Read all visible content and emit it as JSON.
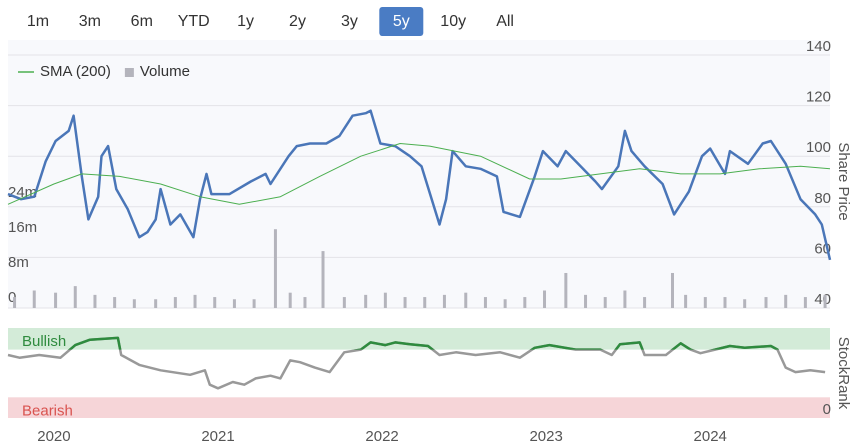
{
  "range_selector": {
    "options": [
      "1m",
      "3m",
      "6m",
      "YTD",
      "1y",
      "2y",
      "3y",
      "5y",
      "10y",
      "All"
    ],
    "selected": 7
  },
  "chart_data": [
    {
      "type": "line",
      "y_label": "Share Price",
      "xlim": [
        2019.72,
        2024.73
      ],
      "xticks": [
        2020,
        2021,
        2022,
        2023,
        2024
      ],
      "ylim": [
        40,
        140
      ],
      "yticks": [
        40,
        60,
        80,
        100,
        120,
        140
      ],
      "y2lim": [
        0,
        57800000
      ],
      "y2ticks": [
        0,
        {
          "value": 8000000,
          "label": "8m"
        },
        {
          "value": 16000000,
          "label": "16m"
        },
        {
          "value": 24000000,
          "label": "24m"
        }
      ],
      "grid": true,
      "legend": "top-left",
      "series": [
        {
          "color": "#4a76b8",
          "x": [
            2019.72,
            2019.8,
            2019.88,
            2019.95,
            2020.01,
            2020.09,
            2020.12,
            2020.17,
            2020.21,
            2020.27,
            2020.29,
            2020.33,
            2020.38,
            2020.45,
            2020.52,
            2020.57,
            2020.62,
            2020.65,
            2020.71,
            2020.77,
            2020.85,
            2020.89,
            2020.93,
            2020.96,
            2021.07,
            2021.2,
            2021.29,
            2021.32,
            2021.43,
            2021.48,
            2021.56,
            2021.66,
            2021.74,
            2021.82,
            2021.9,
            2021.93,
            2021.99,
            2022.08,
            2022.17,
            2022.24,
            2022.35,
            2022.39,
            2022.43,
            2022.51,
            2022.6,
            2022.7,
            2022.74,
            2022.84,
            2022.93,
            2022.98,
            2023.07,
            2023.12,
            2023.21,
            2023.3,
            2023.34,
            2023.44,
            2023.48,
            2023.52,
            2023.6,
            2023.71,
            2023.78,
            2023.87,
            2023.95,
            2024.0,
            2024.09,
            2024.12,
            2024.23,
            2024.32,
            2024.37,
            2024.46,
            2024.55,
            2024.64,
            2024.68,
            2024.73
          ],
          "values": [
            85,
            83,
            84,
            98,
            106,
            110,
            116,
            92,
            75,
            84,
            100,
            104,
            87,
            79,
            68,
            70,
            75,
            87,
            73,
            77,
            68,
            83,
            93,
            85,
            85,
            90,
            93,
            89,
            100,
            104,
            105,
            105,
            108,
            116,
            117,
            118,
            105,
            104,
            100,
            96,
            73,
            83,
            102,
            96,
            95,
            92,
            78,
            76,
            92,
            102,
            96,
            102,
            96,
            90,
            87,
            96,
            110,
            102,
            96,
            89,
            77,
            86,
            100,
            103,
            93,
            102,
            97,
            105,
            106,
            97,
            83,
            77,
            73,
            59
          ]
        },
        {
          "name": "SMA (200)",
          "color": "#4caf50",
          "x": [
            2019.72,
            2020.0,
            2020.17,
            2020.4,
            2020.65,
            2020.89,
            2021.13,
            2021.38,
            2021.62,
            2021.87,
            2022.11,
            2022.29,
            2022.6,
            2022.9,
            2023.09,
            2023.33,
            2023.57,
            2023.82,
            2024.06,
            2024.3,
            2024.55,
            2024.73
          ],
          "values": [
            81,
            89,
            93,
            92,
            89,
            84,
            81,
            84,
            92,
            100,
            105,
            104,
            100,
            91,
            91,
            93,
            95,
            93,
            93,
            95,
            96,
            95
          ]
        },
        {
          "name": "Volume",
          "type": "bar",
          "axis": "y2",
          "color": "#b4b4bc",
          "x": [
            2019.76,
            2019.88,
            2020.01,
            2020.13,
            2020.25,
            2020.37,
            2020.49,
            2020.62,
            2020.74,
            2020.86,
            2020.98,
            2021.1,
            2021.22,
            2021.35,
            2021.44,
            2021.53,
            2021.64,
            2021.77,
            2021.9,
            2022.02,
            2022.14,
            2022.26,
            2022.38,
            2022.51,
            2022.63,
            2022.75,
            2022.87,
            2022.99,
            2023.12,
            2023.24,
            2023.36,
            2023.48,
            2023.6,
            2023.77,
            2023.85,
            2023.97,
            2024.09,
            2024.21,
            2024.34,
            2024.46,
            2024.58,
            2024.7
          ],
          "values": [
            2500000,
            4000000,
            3500000,
            5000000,
            3000000,
            2500000,
            2000000,
            2000000,
            2500000,
            3000000,
            2500000,
            2000000,
            2000000,
            18000000,
            3500000,
            2500000,
            13000000,
            2500000,
            3000000,
            3500000,
            2500000,
            2500000,
            3000000,
            3500000,
            2500000,
            2000000,
            2500000,
            4000000,
            8000000,
            3000000,
            2500000,
            4000000,
            2500000,
            8000000,
            3000000,
            2500000,
            2500000,
            2000000,
            2500000,
            3000000,
            2500000,
            3000000
          ]
        }
      ]
    },
    {
      "type": "line",
      "y_label": "StockRank",
      "xlim": [
        2019.72,
        2024.73
      ],
      "ylim": [
        0,
        100
      ],
      "yticks": [
        0
      ],
      "bands": [
        {
          "label": "Bullish",
          "from": 76,
          "to": 100,
          "color": "#d3ebd8",
          "text_color": "#2e8b3e"
        },
        {
          "label": "Bearish",
          "from": 0,
          "to": 23,
          "color": "#f6d5d8",
          "text_color": "#d9534f"
        }
      ],
      "series": [
        {
          "color": "#999999",
          "bullish_color": "#2e8b3e",
          "x": [
            2019.72,
            2019.79,
            2019.91,
            2020.04,
            2020.13,
            2020.22,
            2020.39,
            2020.41,
            2020.52,
            2020.65,
            2020.83,
            2020.92,
            2020.95,
            2021.0,
            2021.09,
            2021.16,
            2021.23,
            2021.32,
            2021.38,
            2021.44,
            2021.5,
            2021.59,
            2021.68,
            2021.77,
            2021.87,
            2021.93,
            2022.02,
            2022.08,
            2022.17,
            2022.28,
            2022.35,
            2022.45,
            2022.57,
            2022.72,
            2022.84,
            2022.93,
            2023.02,
            2023.18,
            2023.33,
            2023.4,
            2023.45,
            2023.57,
            2023.6,
            2023.73,
            2023.82,
            2023.88,
            2023.94,
            2024.03,
            2024.12,
            2024.21,
            2024.37,
            2024.41,
            2024.46,
            2024.52,
            2024.61,
            2024.7
          ],
          "values": [
            70,
            67,
            70,
            67,
            81,
            87,
            89,
            70,
            59,
            53,
            48,
            53,
            37,
            33,
            40,
            37,
            44,
            47,
            44,
            64,
            62,
            56,
            51,
            73,
            76,
            84,
            81,
            84,
            82,
            80,
            70,
            73,
            70,
            73,
            67,
            78,
            81,
            76,
            76,
            70,
            82,
            84,
            70,
            70,
            83,
            76,
            72,
            76,
            80,
            78,
            80,
            76,
            56,
            51,
            53,
            51
          ]
        }
      ]
    }
  ]
}
